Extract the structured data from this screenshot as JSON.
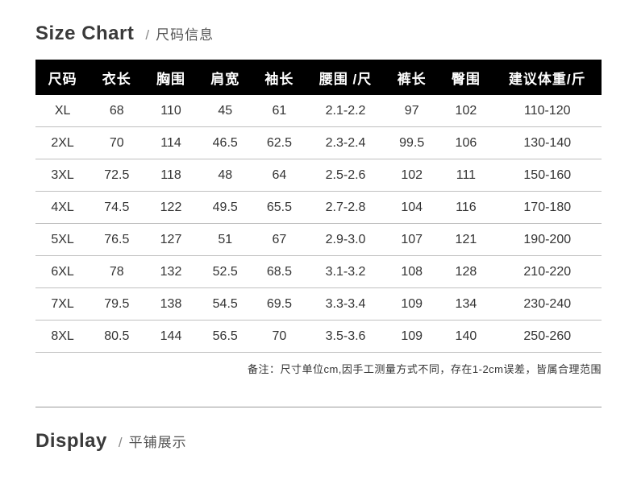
{
  "section1": {
    "title_en": "Size Chart",
    "slash": "/",
    "title_zh": "尺码信息"
  },
  "table": {
    "headers": [
      "尺码",
      "衣长",
      "胸围",
      "肩宽",
      "袖长",
      "腰围 /尺",
      "裤长",
      "臀围",
      "建议体重/斤"
    ],
    "rows": [
      [
        "XL",
        "68",
        "110",
        "45",
        "61",
        "2.1-2.2",
        "97",
        "102",
        "110-120"
      ],
      [
        "2XL",
        "70",
        "114",
        "46.5",
        "62.5",
        "2.3-2.4",
        "99.5",
        "106",
        "130-140"
      ],
      [
        "3XL",
        "72.5",
        "118",
        "48",
        "64",
        "2.5-2.6",
        "102",
        "111",
        "150-160"
      ],
      [
        "4XL",
        "74.5",
        "122",
        "49.5",
        "65.5",
        "2.7-2.8",
        "104",
        "116",
        "170-180"
      ],
      [
        "5XL",
        "76.5",
        "127",
        "51",
        "67",
        "2.9-3.0",
        "107",
        "121",
        "190-200"
      ],
      [
        "6XL",
        "78",
        "132",
        "52.5",
        "68.5",
        "3.1-3.2",
        "108",
        "128",
        "210-220"
      ],
      [
        "7XL",
        "79.5",
        "138",
        "54.5",
        "69.5",
        "3.3-3.4",
        "109",
        "134",
        "230-240"
      ],
      [
        "8XL",
        "80.5",
        "144",
        "56.5",
        "70",
        "3.5-3.6",
        "109",
        "140",
        "250-260"
      ]
    ]
  },
  "footnote": "备注：尺寸单位cm,因手工测量方式不同，存在1-2cm误差，皆属合理范围",
  "section2": {
    "title_en": "Display",
    "slash": "/",
    "title_zh": "平铺展示"
  }
}
